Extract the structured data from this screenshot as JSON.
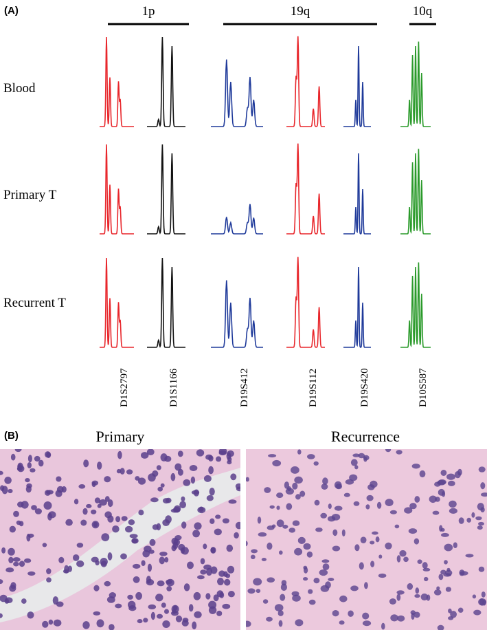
{
  "panel_a": {
    "label": "(A)",
    "groups": [
      "1p",
      "19q",
      "10q"
    ],
    "rows": [
      "Blood",
      "Primary T",
      "Recurrent T"
    ],
    "markers": [
      "D1S2797",
      "D1S1166",
      "D19S412",
      "D19S112",
      "D19S420",
      "D10S587"
    ]
  },
  "panel_b": {
    "label": "(B)",
    "titles": [
      "Primary",
      "Recurrence"
    ]
  }
}
